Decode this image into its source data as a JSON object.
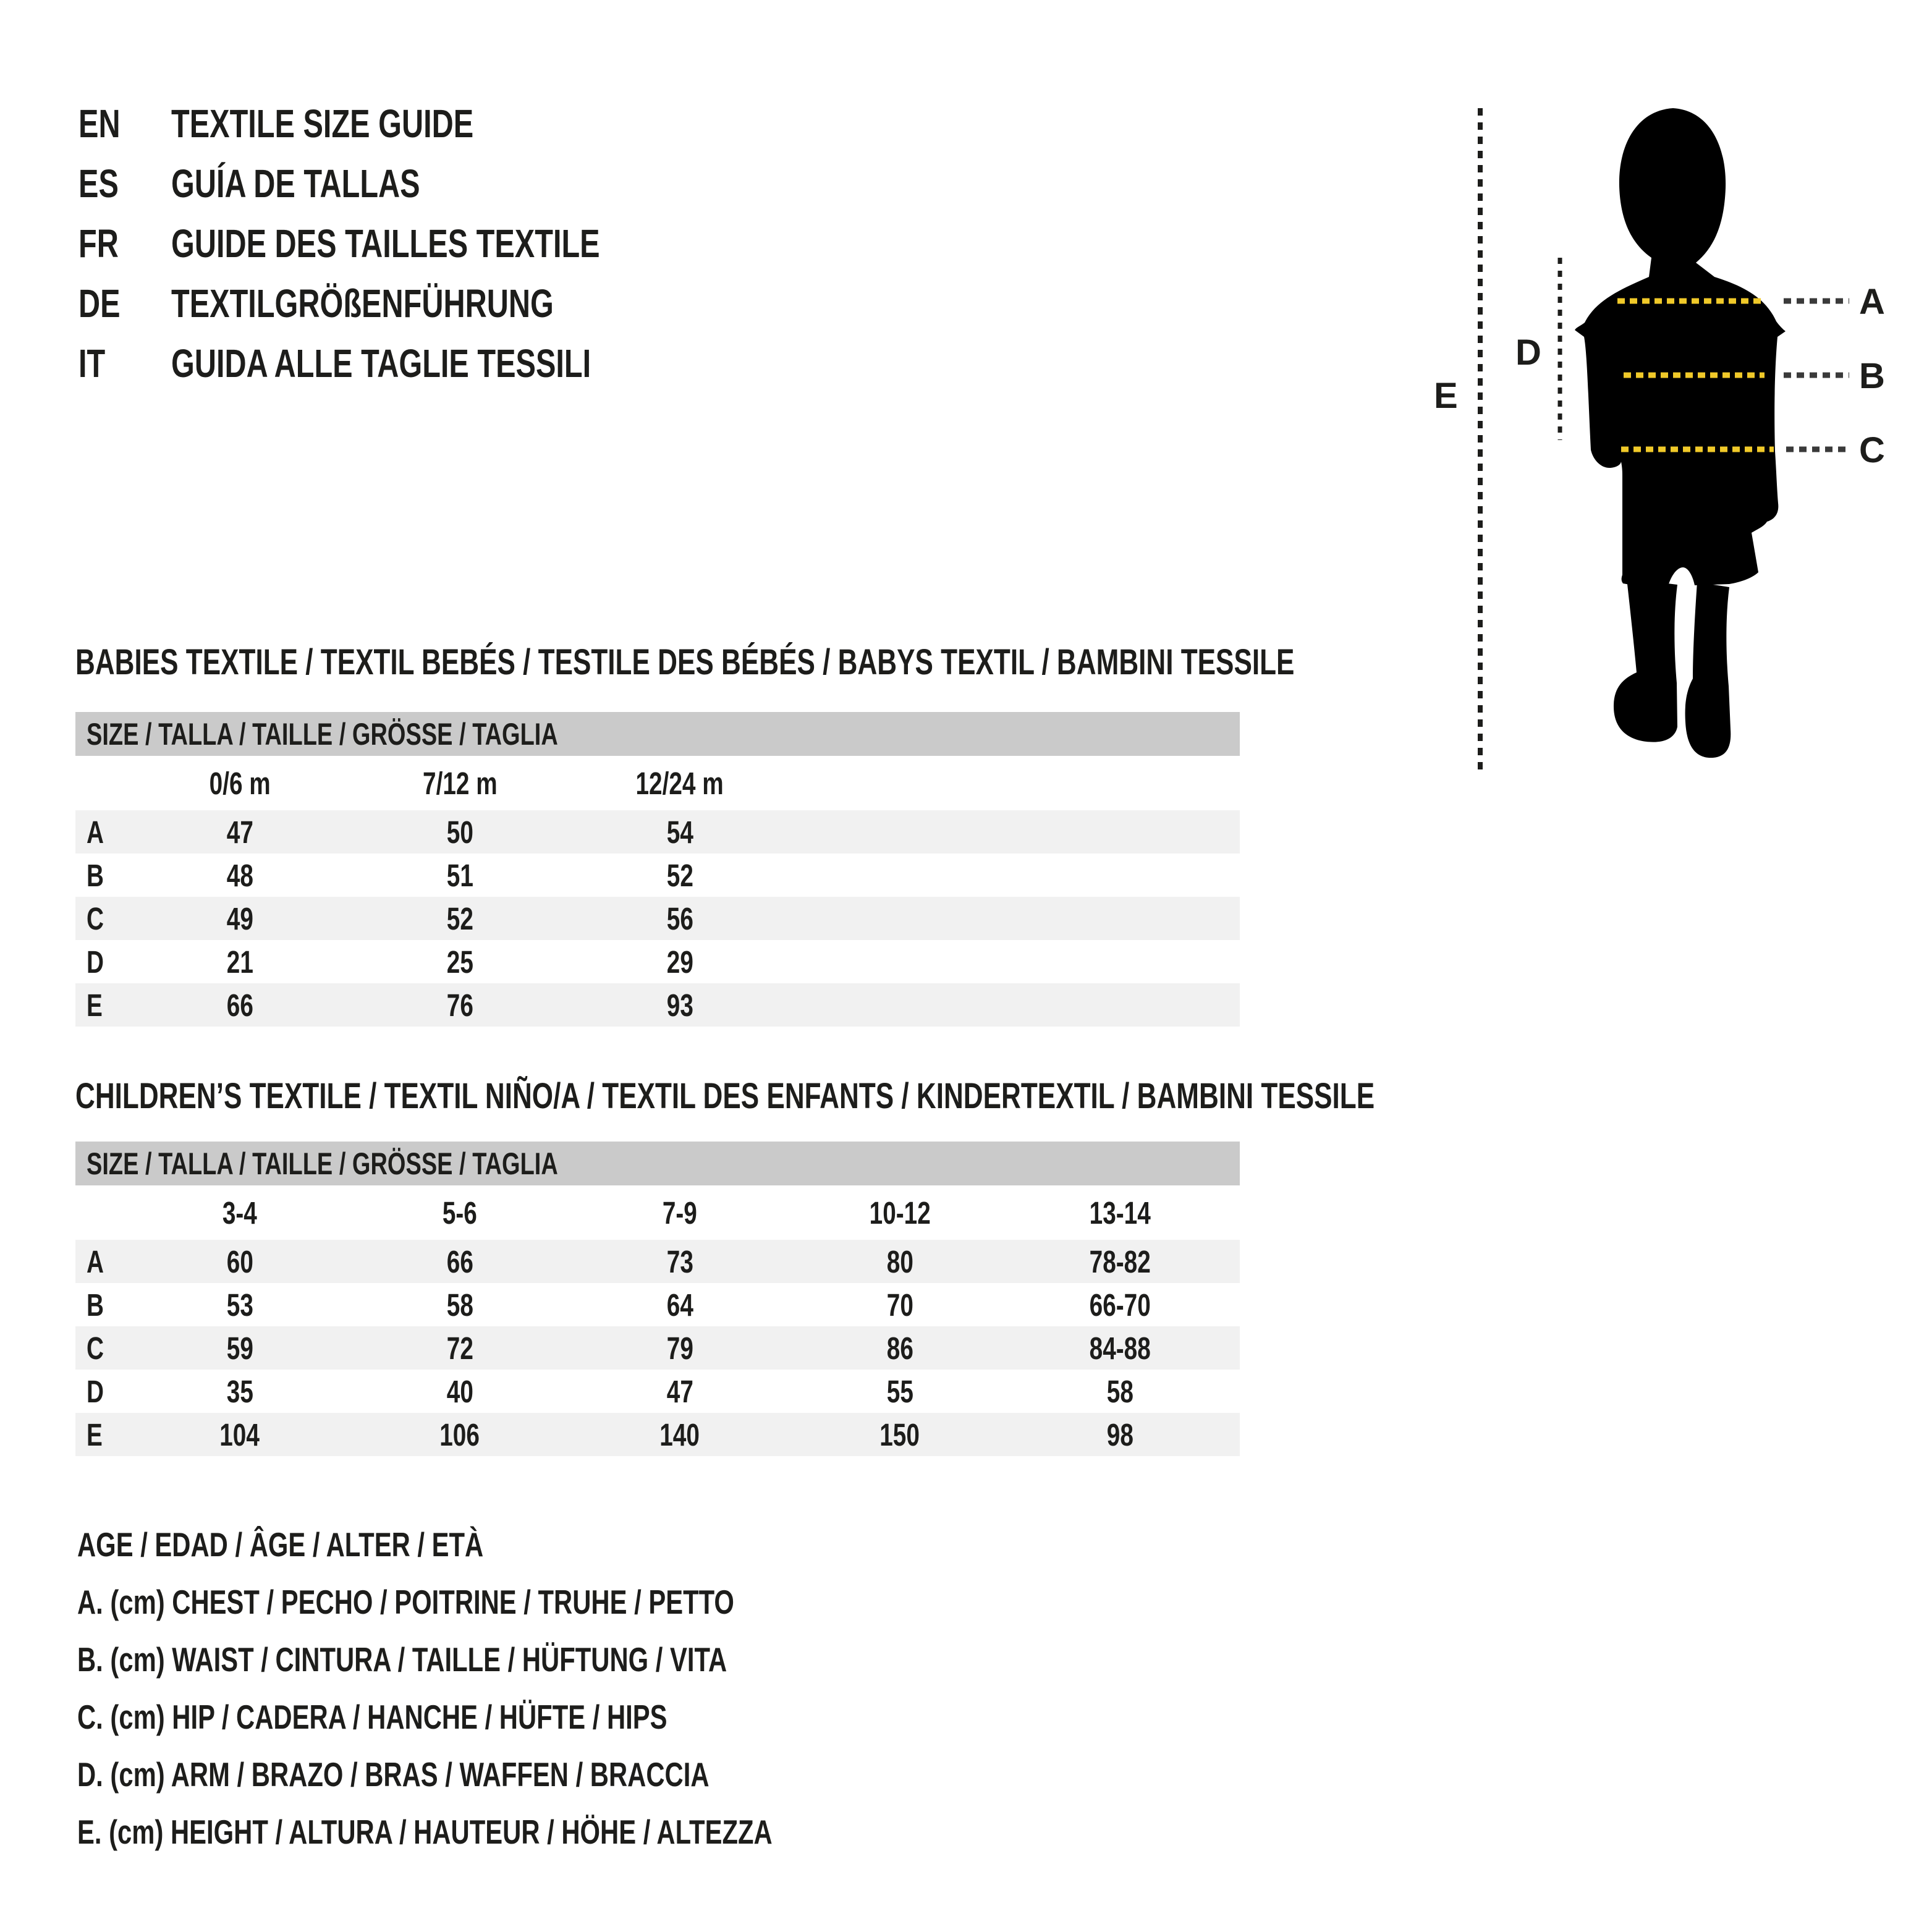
{
  "colors": {
    "text": "#1d1d1b",
    "header_bg": "#cacaca",
    "row_alt": "#f1f1f1",
    "silhouette": "#000000",
    "yellow_dash": "#f0c929",
    "dark_dash": "#3a3a3a",
    "page_bg": "#ffffff"
  },
  "languages": [
    {
      "code": "EN",
      "title": "TEXTILE SIZE GUIDE"
    },
    {
      "code": "ES",
      "title": "GUÍA DE TALLAS"
    },
    {
      "code": "FR",
      "title": "GUIDE DES TAILLES TEXTILE"
    },
    {
      "code": "DE",
      "title": "TEXTILGRÖßENFÜHRUNG"
    },
    {
      "code": "IT",
      "title": "GUIDA ALLE TAGLIE TESSILI"
    }
  ],
  "figure": {
    "labels": {
      "a": "A",
      "b": "B",
      "c": "C",
      "d": "D",
      "e": "E"
    }
  },
  "tables": [
    {
      "id": "babies",
      "heading": "BABIES TEXTILE / TEXTIL BEBÉS / TESTILE DES BÉBÉS / BABYS TEXTIL / BAMBINI TESSILE",
      "size_header": "SIZE / TALLA / TAILLE / GRÖSSE / TAGLIA",
      "columns": [
        "0/6 m",
        "7/12 m",
        "12/24 m"
      ],
      "rows": [
        {
          "label": "A",
          "values": [
            "47",
            "50",
            "54"
          ]
        },
        {
          "label": "B",
          "values": [
            "48",
            "51",
            "52"
          ]
        },
        {
          "label": "C",
          "values": [
            "49",
            "52",
            "56"
          ]
        },
        {
          "label": "D",
          "values": [
            "21",
            "25",
            "29"
          ]
        },
        {
          "label": "E",
          "values": [
            "66",
            "76",
            "93"
          ]
        }
      ]
    },
    {
      "id": "children",
      "heading": "CHILDREN’S TEXTILE / TEXTIL NIÑO/A / TEXTIL DES ENFANTS / KINDERTEXTIL / BAMBINI TESSILE",
      "size_header": "SIZE / TALLA / TAILLE / GRÖSSE / TAGLIA",
      "columns": [
        "3-4",
        "5-6",
        "7-9",
        "10-12",
        "13-14"
      ],
      "rows": [
        {
          "label": "A",
          "values": [
            "60",
            "66",
            "73",
            "80",
            "78-82"
          ]
        },
        {
          "label": "B",
          "values": [
            "53",
            "58",
            "64",
            "70",
            "66-70"
          ]
        },
        {
          "label": "C",
          "values": [
            "59",
            "72",
            "79",
            "86",
            "84-88"
          ]
        },
        {
          "label": "D",
          "values": [
            "35",
            "40",
            "47",
            "55",
            "58"
          ]
        },
        {
          "label": "E",
          "values": [
            "104",
            "106",
            "140",
            "150",
            "98"
          ]
        }
      ]
    }
  ],
  "legend": {
    "lines": [
      "AGE / EDAD / ÂGE / ALTER / ETÀ",
      "A. (cm) CHEST / PECHO / POITRINE / TRUHE / PETTO",
      "B. (cm) WAIST / CINTURA / TAILLE / HÜFTUNG / VITA",
      "C. (cm) HIP / CADERA / HANCHE / HÜFTE / HIPS",
      "D. (cm) ARM / BRAZO / BRAS / WAFFEN / BRACCIA",
      "E. (cm) HEIGHT / ALTURA / HAUTEUR / HÖHE / ALTEZZA"
    ]
  }
}
